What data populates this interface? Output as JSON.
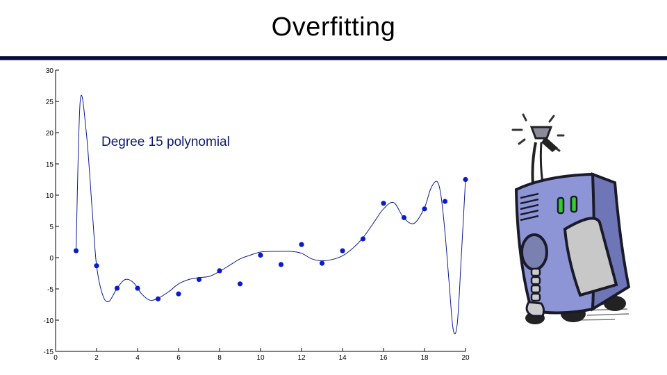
{
  "title": "Overfitting",
  "chart_data": {
    "type": "scatter",
    "annotation": "Degree 15 polynomial",
    "xlim": [
      0,
      20
    ],
    "ylim": [
      -15,
      30
    ],
    "x_ticks": [
      0,
      2,
      4,
      6,
      8,
      10,
      12,
      14,
      16,
      18,
      20
    ],
    "y_ticks": [
      -15,
      -10,
      -5,
      0,
      5,
      10,
      15,
      20,
      25,
      30
    ],
    "points": {
      "x": [
        1,
        2,
        3,
        4,
        5,
        6,
        7,
        8,
        9,
        10,
        11,
        12,
        13,
        14,
        15,
        16,
        17,
        18,
        19,
        20
      ],
      "y": [
        1.1,
        -1.3,
        -4.9,
        -4.9,
        -6.6,
        -5.8,
        -3.5,
        -2.1,
        -4.2,
        0.4,
        -1.1,
        2.1,
        -0.9,
        1.1,
        3.0,
        8.7,
        6.4,
        7.8,
        9.0,
        12.5
      ]
    },
    "curve": {
      "x": [
        1,
        1.2,
        1.5,
        1.8,
        2,
        2.3,
        2.6,
        3,
        3.4,
        3.8,
        4.2,
        4.6,
        5,
        5.5,
        6,
        6.5,
        7,
        7.5,
        8,
        8.5,
        9,
        9.5,
        10,
        10.5,
        11,
        11.5,
        12,
        12.5,
        13,
        13.5,
        14,
        14.5,
        15,
        15.5,
        16,
        16.5,
        17,
        17.5,
        18,
        18.3,
        18.6,
        18.8,
        19,
        19.2,
        19.4,
        19.6,
        19.8,
        20
      ],
      "y": [
        1.1,
        25.0,
        20.0,
        7.0,
        -1.3,
        -6.0,
        -7.0,
        -4.9,
        -3.5,
        -4.0,
        -5.8,
        -6.8,
        -6.5,
        -5.5,
        -4.2,
        -3.5,
        -3.2,
        -3.0,
        -2.2,
        -1.2,
        -0.2,
        0.4,
        0.9,
        1.0,
        1.0,
        1.0,
        0.7,
        -0.2,
        -0.5,
        -0.3,
        0.3,
        1.5,
        3.2,
        5.5,
        7.8,
        8.8,
        6.3,
        5.5,
        8.0,
        11.0,
        12.2,
        10.0,
        4.0,
        -4.0,
        -11.5,
        -10.5,
        0.5,
        12.5
      ]
    },
    "colors": {
      "points": "#0a1bcc",
      "curve": "#0a1b8f"
    }
  }
}
